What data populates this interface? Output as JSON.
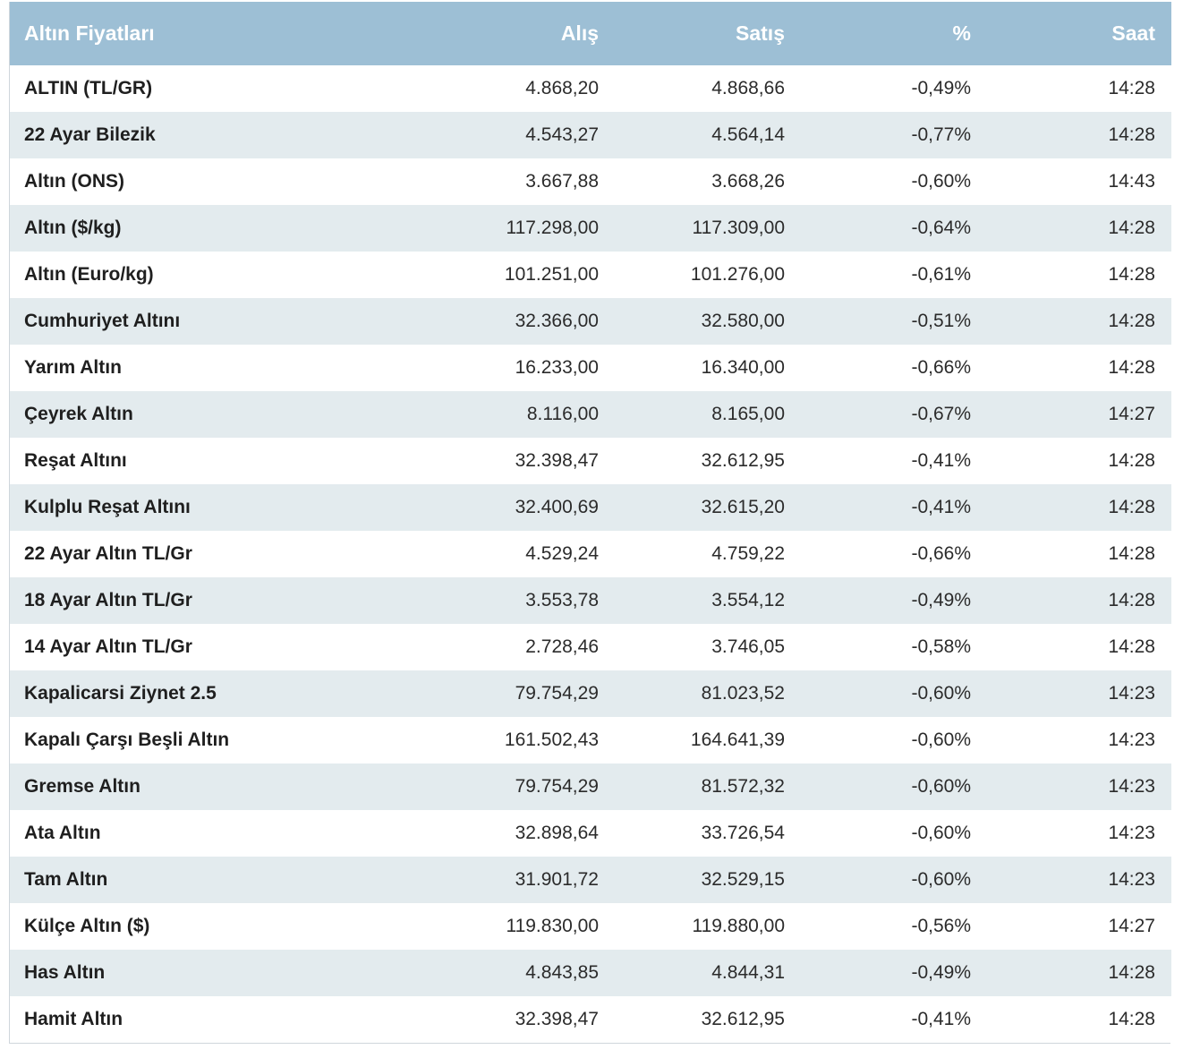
{
  "table": {
    "headers": {
      "name": "Altın Fiyatları",
      "buy": "Alış",
      "sell": "Satış",
      "change": "%",
      "time": "Saat"
    },
    "rows": [
      {
        "name": "ALTIN (TL/GR)",
        "buy": "4.868,20",
        "sell": "4.868,66",
        "change": "-0,49%",
        "time": "14:28"
      },
      {
        "name": "22 Ayar Bilezik",
        "buy": "4.543,27",
        "sell": "4.564,14",
        "change": "-0,77%",
        "time": "14:28"
      },
      {
        "name": "Altın (ONS)",
        "buy": "3.667,88",
        "sell": "3.668,26",
        "change": "-0,60%",
        "time": "14:43"
      },
      {
        "name": "Altın ($/kg)",
        "buy": "117.298,00",
        "sell": "117.309,00",
        "change": "-0,64%",
        "time": "14:28"
      },
      {
        "name": "Altın (Euro/kg)",
        "buy": "101.251,00",
        "sell": "101.276,00",
        "change": "-0,61%",
        "time": "14:28"
      },
      {
        "name": "Cumhuriyet Altını",
        "buy": "32.366,00",
        "sell": "32.580,00",
        "change": "-0,51%",
        "time": "14:28"
      },
      {
        "name": "Yarım Altın",
        "buy": "16.233,00",
        "sell": "16.340,00",
        "change": "-0,66%",
        "time": "14:28"
      },
      {
        "name": "Çeyrek Altın",
        "buy": "8.116,00",
        "sell": "8.165,00",
        "change": "-0,67%",
        "time": "14:27"
      },
      {
        "name": "Reşat Altını",
        "buy": "32.398,47",
        "sell": "32.612,95",
        "change": "-0,41%",
        "time": "14:28"
      },
      {
        "name": "Kulplu Reşat Altını",
        "buy": "32.400,69",
        "sell": "32.615,20",
        "change": "-0,41%",
        "time": "14:28"
      },
      {
        "name": "22 Ayar Altın TL/Gr",
        "buy": "4.529,24",
        "sell": "4.759,22",
        "change": "-0,66%",
        "time": "14:28"
      },
      {
        "name": "18 Ayar Altın TL/Gr",
        "buy": "3.553,78",
        "sell": "3.554,12",
        "change": "-0,49%",
        "time": "14:28"
      },
      {
        "name": "14 Ayar Altın TL/Gr",
        "buy": "2.728,46",
        "sell": "3.746,05",
        "change": "-0,58%",
        "time": "14:28"
      },
      {
        "name": "Kapalicarsi Ziynet 2.5",
        "buy": "79.754,29",
        "sell": "81.023,52",
        "change": "-0,60%",
        "time": "14:23"
      },
      {
        "name": "Kapalı Çarşı Beşli Altın",
        "buy": "161.502,43",
        "sell": "164.641,39",
        "change": "-0,60%",
        "time": "14:23"
      },
      {
        "name": "Gremse Altın",
        "buy": "79.754,29",
        "sell": "81.572,32",
        "change": "-0,60%",
        "time": "14:23"
      },
      {
        "name": "Ata Altın",
        "buy": "32.898,64",
        "sell": "33.726,54",
        "change": "-0,60%",
        "time": "14:23"
      },
      {
        "name": "Tam Altın",
        "buy": "31.901,72",
        "sell": "32.529,15",
        "change": "-0,60%",
        "time": "14:23"
      },
      {
        "name": "Külçe Altın ($)",
        "buy": "119.830,00",
        "sell": "119.880,00",
        "change": "-0,56%",
        "time": "14:27"
      },
      {
        "name": "Has Altın",
        "buy": "4.843,85",
        "sell": "4.844,31",
        "change": "-0,49%",
        "time": "14:28"
      },
      {
        "name": "Hamit Altın",
        "buy": "32.398,47",
        "sell": "32.612,95",
        "change": "-0,41%",
        "time": "14:28"
      }
    ]
  },
  "colors": {
    "header_bg": "#9dbfd5",
    "header_text": "#ffffff",
    "row_alt_bg": "#e3ebee",
    "row_bg": "#ffffff"
  }
}
